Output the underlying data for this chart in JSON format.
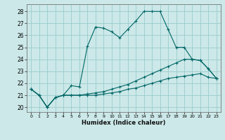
{
  "xlabel": "Humidex (Indice chaleur)",
  "background_color": "#cce8e8",
  "grid_color": "#99cccc",
  "line_color": "#006666",
  "xlim": [
    -0.5,
    23.5
  ],
  "ylim": [
    19.6,
    28.6
  ],
  "xticks": [
    0,
    1,
    2,
    3,
    4,
    5,
    6,
    7,
    8,
    9,
    10,
    11,
    12,
    13,
    14,
    15,
    16,
    17,
    18,
    19,
    20,
    21,
    22,
    23
  ],
  "yticks": [
    20,
    21,
    22,
    23,
    24,
    25,
    26,
    27,
    28
  ],
  "line1_y": [
    21.5,
    21.0,
    20.0,
    20.8,
    21.0,
    21.8,
    21.7,
    25.1,
    26.7,
    26.6,
    26.3,
    25.8,
    26.5,
    27.2,
    28.0,
    28.0,
    28.0,
    26.5,
    25.0,
    25.0,
    24.0,
    23.9,
    23.2,
    22.4
  ],
  "line2_y": [
    21.5,
    21.0,
    20.0,
    20.8,
    21.0,
    21.0,
    21.0,
    21.1,
    21.2,
    21.3,
    21.5,
    21.7,
    21.9,
    22.2,
    22.5,
    22.8,
    23.1,
    23.4,
    23.7,
    24.0,
    24.0,
    23.9,
    23.2,
    22.4
  ],
  "line3_y": [
    21.5,
    21.0,
    20.0,
    20.8,
    21.0,
    21.0,
    21.0,
    21.0,
    21.0,
    21.1,
    21.2,
    21.3,
    21.5,
    21.6,
    21.8,
    22.0,
    22.2,
    22.4,
    22.5,
    22.6,
    22.7,
    22.8,
    22.5,
    22.4
  ]
}
